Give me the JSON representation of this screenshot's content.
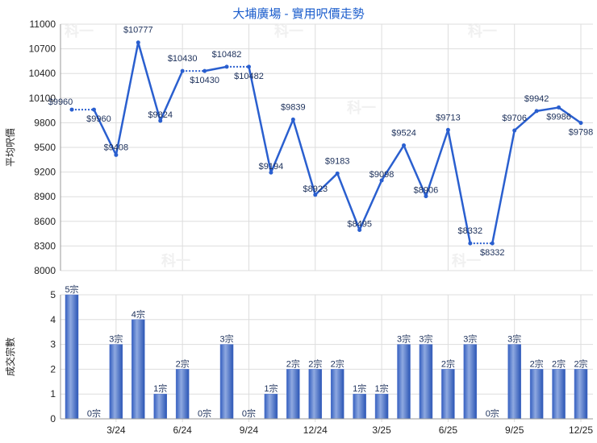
{
  "title": "大埔廣場 - 實用呎價走勢",
  "colors": {
    "line": "#2a5fcf",
    "bar": "#3a65c4",
    "title": "#1a5ccc",
    "grid": "#dddddd"
  },
  "watermark": "科一",
  "chart_data": [
    {
      "type": "line",
      "ylabel": "平均呎價",
      "ylim": [
        8000,
        11000
      ],
      "yticks": [
        8000,
        8300,
        8600,
        8900,
        9200,
        9500,
        9800,
        10100,
        10400,
        10700,
        11000
      ],
      "x": [
        "1/24",
        "2/24",
        "3/24",
        "4/24",
        "5/24",
        "6/24",
        "7/24",
        "8/24",
        "9/24",
        "10/24",
        "11/24",
        "12/24",
        "1/25",
        "2/25",
        "3/25",
        "4/25",
        "5/25",
        "6/25",
        "7/25",
        "8/25",
        "9/25",
        "10/25",
        "11/25",
        "12/25"
      ],
      "values": [
        9960,
        9960,
        9408,
        10777,
        9824,
        10430,
        10430,
        10482,
        10482,
        9194,
        9839,
        8923,
        9183,
        8495,
        9098,
        9524,
        8906,
        9713,
        8332,
        8332,
        9706,
        9942,
        9986,
        9798
      ],
      "labels": [
        "$9960",
        "$9960",
        "$9408",
        "$10777",
        "$9824",
        "$10430",
        "$10430",
        "$10482",
        "$10482",
        "$9194",
        "$9839",
        "$8923",
        "$9183",
        "$8495",
        "$9098",
        "$9524",
        "$8906",
        "$9713",
        "$8332",
        "$8332",
        "$9706",
        "$9942",
        "$9986",
        "$9798"
      ],
      "dotted_segments_after_index": [
        0,
        5,
        7,
        18
      ],
      "grid": true
    },
    {
      "type": "bar",
      "ylabel": "成交宗數",
      "ylim": [
        0,
        5
      ],
      "yticks": [
        0,
        1,
        2,
        3,
        4,
        5
      ],
      "xtick_labels": [
        "3/24",
        "6/24",
        "9/24",
        "12/24",
        "3/25",
        "6/25",
        "9/25",
        "12/25"
      ],
      "values": [
        5,
        0,
        3,
        4,
        1,
        2,
        0,
        3,
        0,
        1,
        2,
        2,
        2,
        1,
        1,
        3,
        3,
        2,
        3,
        0,
        3,
        2,
        2,
        2
      ],
      "labels": [
        "5宗",
        "0宗",
        "3宗",
        "4宗",
        "1宗",
        "2宗",
        "0宗",
        "3宗",
        "0宗",
        "1宗",
        "2宗",
        "2宗",
        "2宗",
        "1宗",
        "1宗",
        "3宗",
        "3宗",
        "2宗",
        "3宗",
        "0宗",
        "3宗",
        "2宗",
        "2宗",
        "2宗"
      ],
      "grid": true
    }
  ]
}
